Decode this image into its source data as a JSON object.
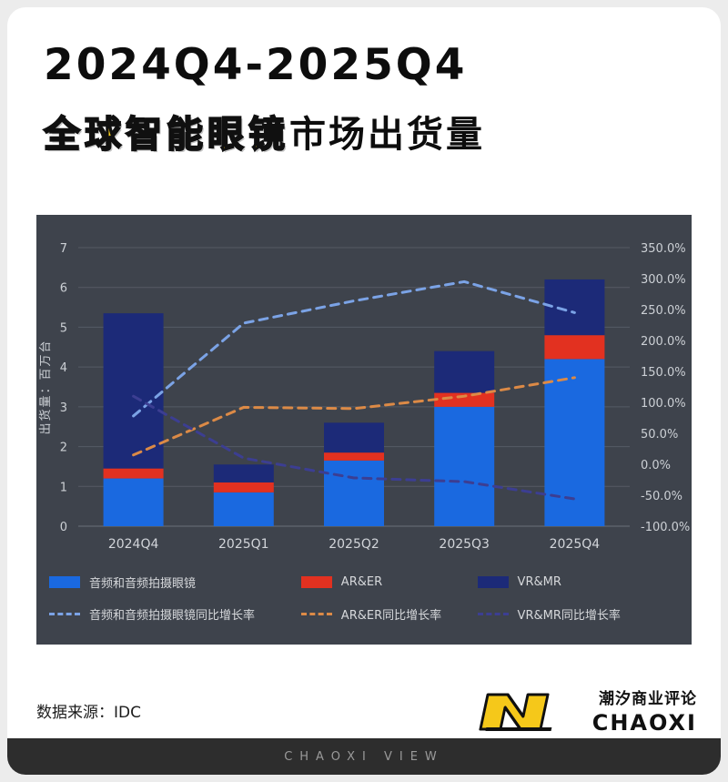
{
  "header": {
    "title_line1": "2024Q4-2025Q4",
    "title_line2_highlight": "全球智能眼镜",
    "title_line2_rest": "市场出货量"
  },
  "chart_data": {
    "type": "bar",
    "subtype": "stacked bars with dashed growth-rate lines (combo)",
    "categories": [
      "2024Q4",
      "2025Q1",
      "2025Q2",
      "2025Q3",
      "2025Q4"
    ],
    "bar_series": [
      {
        "name": "音频和音频拍摄眼镜",
        "color": "#1a69e0",
        "values": [
          1.2,
          0.85,
          1.65,
          3.0,
          4.2
        ]
      },
      {
        "name": "AR&ER",
        "color": "#e23120",
        "values": [
          0.25,
          0.25,
          0.2,
          0.35,
          0.6
        ]
      },
      {
        "name": "VR&MR",
        "color": "#1c2a78",
        "values": [
          3.9,
          0.45,
          0.75,
          1.05,
          1.4
        ]
      }
    ],
    "line_series": [
      {
        "name": "音频和音频拍摄眼镜同比增长率",
        "color": "#7ba3e6",
        "values_pct": [
          78,
          228,
          264,
          295,
          245
        ]
      },
      {
        "name": "AR&ER同比增长率",
        "color": "#dc8a46",
        "values_pct": [
          15,
          92,
          90,
          110,
          140
        ]
      },
      {
        "name": "VR&MR同比增长率",
        "color": "#3c3e92",
        "values_pct": [
          110,
          10,
          -22,
          -28,
          -56
        ]
      }
    ],
    "left_axis": {
      "label": "出货量：百万台",
      "min": 0,
      "max": 7,
      "ticks": [
        7,
        6,
        5,
        4,
        3,
        2,
        1,
        0
      ]
    },
    "right_axis": {
      "min": -100,
      "max": 350,
      "ticks": [
        "350.0%",
        "300.0%",
        "250.0%",
        "200.0%",
        "150.0%",
        "100.0%",
        "50.0%",
        "0.0%",
        "-50.0%",
        "-100.0%"
      ]
    },
    "grid": true,
    "legend_position": "bottom",
    "panel_background": "#3e434c",
    "text_color": "#ccd0d5"
  },
  "footer": {
    "source": "数据来源：IDC",
    "brand_cn": "潮汐商业评论",
    "brand_en": "CHAOXI",
    "bottom_bar": "CHAOXI VIEW"
  }
}
